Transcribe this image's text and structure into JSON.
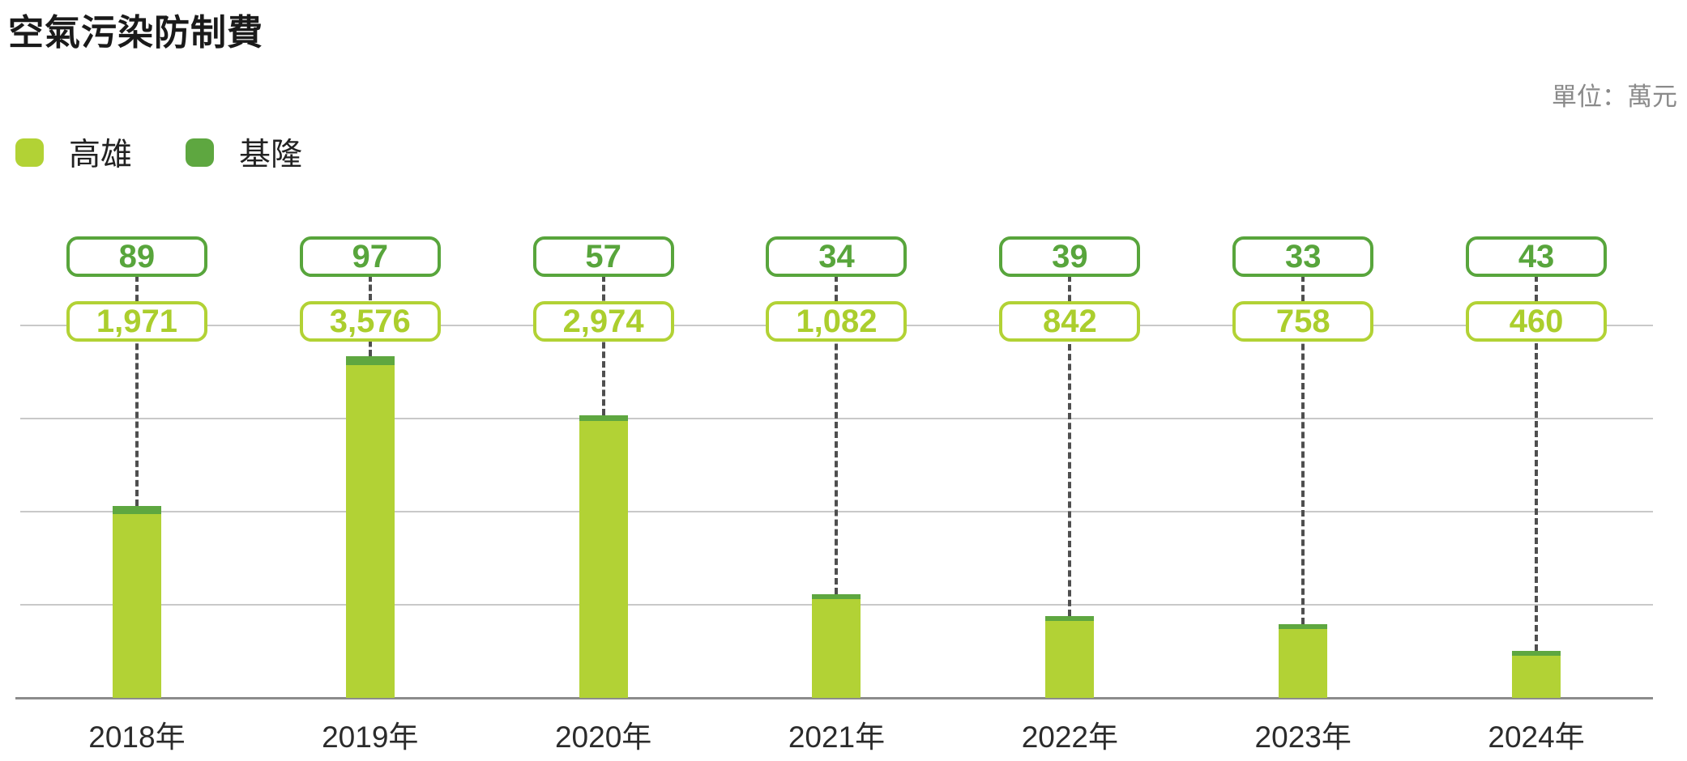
{
  "title": "空氣污染防制費",
  "unit_label": "單位：萬元",
  "legend": {
    "items": [
      {
        "label": "高雄",
        "color": "#b2d235"
      },
      {
        "label": "基隆",
        "color": "#5ea740"
      }
    ]
  },
  "chart_data": {
    "type": "bar",
    "stacked": true,
    "title": "空氣污染防制費",
    "unit": "萬元",
    "categories": [
      "2018年",
      "2019年",
      "2020年",
      "2021年",
      "2022年",
      "2023年",
      "2024年"
    ],
    "series": [
      {
        "name": "高雄",
        "color": "#b2d235",
        "values": [
          1971,
          3576,
          2974,
          1082,
          842,
          758,
          460
        ],
        "labels": [
          "1,971",
          "3,576",
          "2,974",
          "1,082",
          "842",
          "758",
          "460"
        ]
      },
      {
        "name": "基隆",
        "color": "#5ea740",
        "values": [
          89,
          97,
          57,
          34,
          39,
          33,
          43
        ],
        "labels": [
          "89",
          "97",
          "57",
          "34",
          "39",
          "33",
          "43"
        ]
      }
    ],
    "ylim": [
      0,
      4000
    ],
    "gridline_step": 1000,
    "grid": true,
    "legend_position": "top-left",
    "value_badges": "above-columns"
  },
  "colors": {
    "kaohsiung": "#b2d235",
    "keelung": "#5ea740",
    "badge_dark_border": "#58a53c",
    "badge_light_border": "#b2d235",
    "gridline": "#c9c9c9",
    "axis": "#8c8c8c",
    "dash": "#4f4f4f",
    "title_text": "#1a1a1a",
    "unit_text": "#8a8a8a",
    "axis_label_text": "#2b2b2b"
  }
}
